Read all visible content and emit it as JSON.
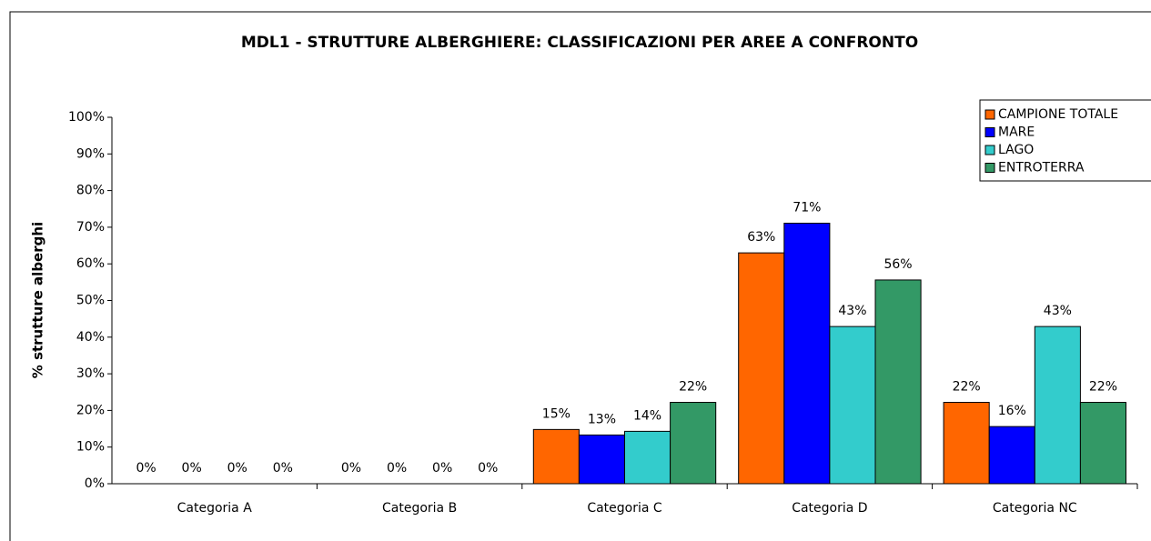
{
  "chart_data": {
    "type": "bar",
    "title": "MDL1 - STRUTTURE ALBERGHIERE: CLASSIFICAZIONI PER AREE A CONFRONTO",
    "y_label": "% strutture alberghi",
    "categories": [
      "Categoria A",
      "Categoria B",
      "Categoria C",
      "Categoria D",
      "Categoria NC"
    ],
    "series": [
      {
        "name": "CAMPIONE TOTALE",
        "color": "#ff6600",
        "values": [
          0,
          0,
          14.8,
          63.0,
          22.2
        ],
        "value_labels": [
          "0%",
          "0%",
          "15%",
          "63%",
          "22%"
        ]
      },
      {
        "name": "MARE",
        "color": "#0000ff",
        "values": [
          0,
          0,
          13.3,
          71.1,
          15.6
        ],
        "value_labels": [
          "0%",
          "0%",
          "13%",
          "71%",
          "16%"
        ]
      },
      {
        "name": "LAGO",
        "color": "#33cccc",
        "values": [
          0,
          0,
          14.3,
          42.9,
          42.9
        ],
        "value_labels": [
          "0%",
          "0%",
          "14%",
          "43%",
          "43%"
        ]
      },
      {
        "name": "ENTROTERRA",
        "color": "#339966",
        "values": [
          0,
          0,
          22.2,
          55.6,
          22.2
        ],
        "value_labels": [
          "0%",
          "0%",
          "22%",
          "56%",
          "22%"
        ]
      }
    ],
    "ylim": [
      0,
      100
    ],
    "yticks": [
      {
        "value": 0,
        "label": "0%"
      },
      {
        "value": 10,
        "label": "10%"
      },
      {
        "value": 20,
        "label": "20%"
      },
      {
        "value": 30,
        "label": "30%"
      },
      {
        "value": 40,
        "label": "40%"
      },
      {
        "value": 50,
        "label": "50%"
      },
      {
        "value": 60,
        "label": "60%"
      },
      {
        "value": 70,
        "label": "70%"
      },
      {
        "value": 80,
        "label": "80%"
      },
      {
        "value": 90,
        "label": "90%"
      },
      {
        "value": 100,
        "label": "100%"
      }
    ],
    "legend": "top-right"
  }
}
